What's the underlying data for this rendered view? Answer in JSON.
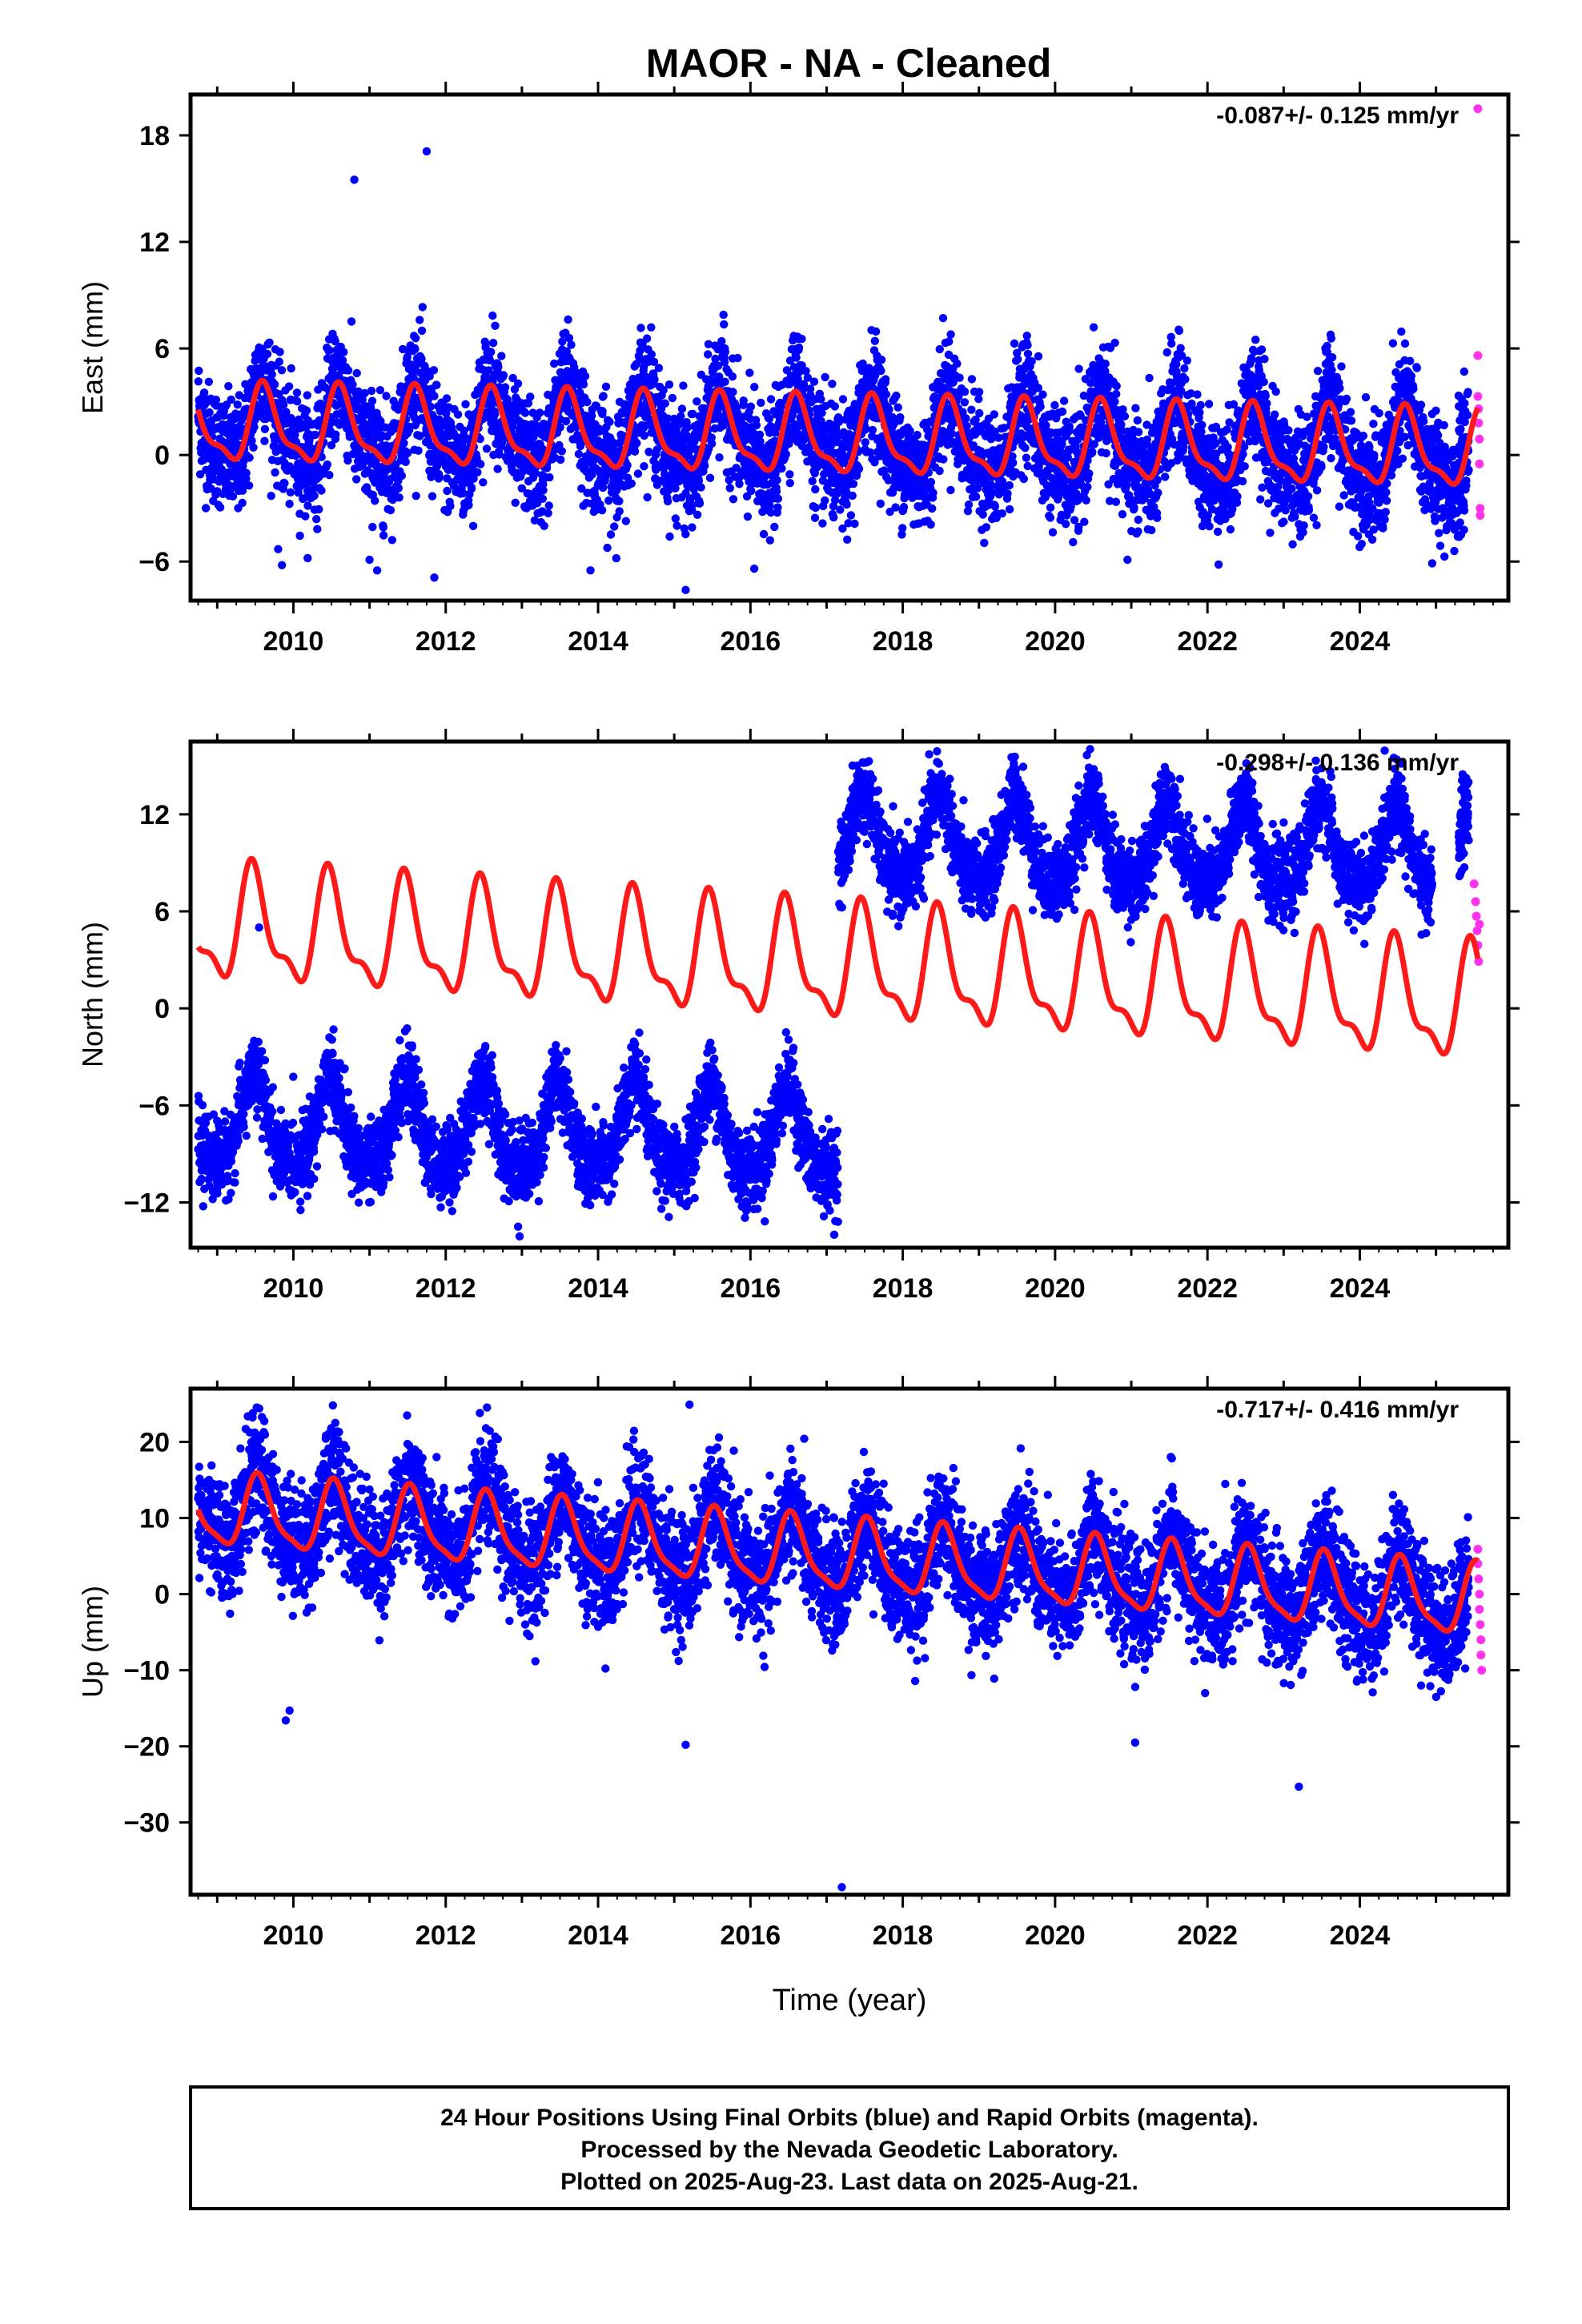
{
  "title": "MAOR  - NA - Cleaned",
  "chart_data": [
    {
      "type": "scatter",
      "name": "east",
      "ylabel": "East (mm)",
      "xlim": [
        2008.65,
        2025.95
      ],
      "ylim": [
        -8.2,
        20.3
      ],
      "yticks": [
        18,
        12,
        6,
        0,
        -6
      ],
      "yticks_text": [
        "18",
        "12",
        "6",
        "0",
        "−6"
      ],
      "rate_text": "-0.087+/- 0.125 mm/yr",
      "model": {
        "offset": 0.9,
        "trend": -0.087,
        "amp": 2.0,
        "peak_phase": 0.62,
        "harm2": 0.7
      },
      "scatter": {
        "noise": 1.6,
        "seasonal_amp": 2.2,
        "peak_phase": 0.62
      },
      "steps": [],
      "outliers": [
        [
          2010.8,
          15.5
        ],
        [
          2011.75,
          17.1
        ],
        [
          2009.8,
          -5.3
        ],
        [
          2009.85,
          -6.2
        ],
        [
          2011.0,
          -5.9
        ],
        [
          2011.1,
          -6.5
        ],
        [
          2011.85,
          -6.9
        ],
        [
          2013.9,
          -6.5
        ],
        [
          2015.15,
          -7.6
        ],
        [
          2016.05,
          -6.4
        ],
        [
          2020.95,
          -5.9
        ],
        [
          2024.95,
          -6.1
        ]
      ],
      "rapid_points": [
        [
          2025.55,
          19.5
        ],
        [
          2025.55,
          5.6
        ],
        [
          2025.55,
          3.3
        ],
        [
          2025.56,
          2.6
        ],
        [
          2025.56,
          1.8
        ],
        [
          2025.57,
          0.9
        ],
        [
          2025.57,
          -0.5
        ],
        [
          2025.58,
          -3.0
        ],
        [
          2025.58,
          -3.4
        ]
      ]
    },
    {
      "type": "scatter",
      "name": "north",
      "ylabel": "North (mm)",
      "xlim": [
        2008.65,
        2025.95
      ],
      "ylim": [
        -14.8,
        16.5
      ],
      "yticks": [
        12,
        6,
        0,
        -6,
        -12
      ],
      "yticks_text": [
        "12",
        "6",
        "0",
        "−6",
        "−12"
      ],
      "rate_text": "-0.298+/- 0.136 mm/yr",
      "model": {
        "offset": 2.6,
        "trend": -0.298,
        "amp": 3.2,
        "peak_phase": 0.48,
        "harm2": 1.3
      },
      "scatter": {
        "noise": 1.2,
        "seasonal_amp": 2.6,
        "peak_phase": 0.48
      },
      "steps": [
        {
          "t": 2017.15,
          "data_from": -8.0,
          "data_to": 10.2,
          "model_delta": 0.0
        }
      ],
      "data_baseline": -5.0,
      "outliers": [
        [
          2009.55,
          5.0
        ],
        [
          2012.05,
          -12.0
        ],
        [
          2012.95,
          -13.5
        ],
        [
          2012.97,
          -14.1
        ],
        [
          2017.1,
          -14.0
        ],
        [
          2017.4,
          14.4
        ],
        [
          2018.45,
          15.9
        ],
        [
          2023.5,
          13.8
        ],
        [
          2024.45,
          13.5
        ]
      ],
      "rapid_points": [
        [
          2025.5,
          7.7
        ],
        [
          2025.52,
          6.6
        ],
        [
          2025.53,
          5.7
        ],
        [
          2025.54,
          4.8
        ],
        [
          2025.55,
          3.9
        ],
        [
          2025.56,
          2.9
        ],
        [
          2025.57,
          5.2
        ]
      ]
    },
    {
      "type": "scatter",
      "name": "up",
      "ylabel": "Up (mm)",
      "xlim": [
        2008.65,
        2025.95
      ],
      "ylim": [
        -39.5,
        27.0
      ],
      "yticks": [
        20,
        10,
        0,
        -10,
        -20,
        -30
      ],
      "yticks_text": [
        "20",
        "10",
        "0",
        "−10",
        "−20",
        "−30"
      ],
      "rate_text": "-0.717+/- 0.416 mm/yr",
      "model": {
        "offset": 5.0,
        "trend": -0.717,
        "amp": 4.5,
        "peak_phase": 0.55,
        "harm2": 1.2
      },
      "scatter": {
        "noise": 3.8,
        "seasonal_amp": 4.0,
        "peak_phase": 0.55
      },
      "steps": [],
      "outliers": [
        [
          2010.55,
          22.5
        ],
        [
          2010.6,
          21.3
        ],
        [
          2012.65,
          20.7
        ],
        [
          2012.6,
          19.8
        ],
        [
          2014.55,
          18.2
        ],
        [
          2015.2,
          24.9
        ],
        [
          2015.15,
          -19.8
        ],
        [
          2009.9,
          -16.6
        ],
        [
          2009.95,
          -15.3
        ],
        [
          2017.2,
          -38.5
        ],
        [
          2021.05,
          -19.5
        ],
        [
          2023.2,
          -25.3
        ]
      ],
      "rapid_points": [
        [
          2025.55,
          5.9
        ],
        [
          2025.55,
          4.0
        ],
        [
          2025.56,
          2.0
        ],
        [
          2025.57,
          0.0
        ],
        [
          2025.57,
          -2.0
        ],
        [
          2025.58,
          -4.0
        ],
        [
          2025.59,
          -6.0
        ],
        [
          2025.59,
          -8.0
        ],
        [
          2025.6,
          -10.0
        ]
      ]
    }
  ],
  "xticks": [
    2010,
    2012,
    2014,
    2016,
    2018,
    2020,
    2022,
    2024
  ],
  "xticks_text": [
    "2010",
    "2012",
    "2014",
    "2016",
    "2018",
    "2020",
    "2022",
    "2024"
  ],
  "data_range": [
    2008.75,
    2025.55
  ],
  "xlabel": "Time (year)",
  "footer": {
    "line1": "24 Hour Positions Using Final Orbits (blue) and Rapid Orbits (magenta).",
    "line2": "Processed by the Nevada Geodetic Laboratory.",
    "line3": "Plotted on 2025-Aug-23. Last data on 2025-Aug-21."
  },
  "colors": {
    "final": "#0000ff",
    "rapid": "#ff33ee",
    "model": "#ff1a1a",
    "axis": "#000000"
  }
}
